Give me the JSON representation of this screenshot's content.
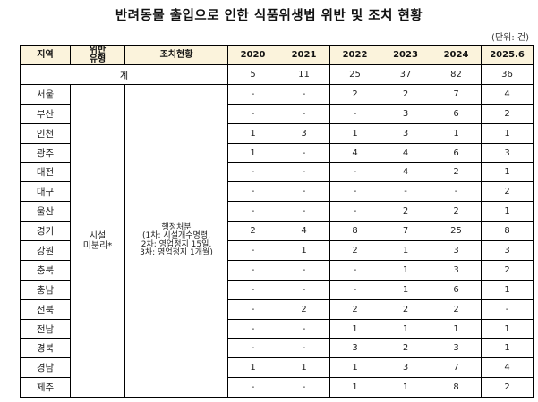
{
  "title": "반려동물 출입으로 인한 식품위생법 위반 및 조치 현황",
  "unit": "(단위: 건)",
  "headers": {
    "region": "지역",
    "violation_type": "위반\n유형",
    "action": "조치현황",
    "years": [
      "2020",
      "2021",
      "2022",
      "2023",
      "2024",
      "2025.6"
    ]
  },
  "total": {
    "label": "계",
    "values": [
      "5",
      "11",
      "25",
      "37",
      "82",
      "36"
    ]
  },
  "violation_type": "시설\n미분리*",
  "action": "행정처분\n(1차: 시설개수명령,\n2차: 영업정지 15일,\n3차: 영업정지 1개월)",
  "rows": [
    {
      "region": "서울",
      "values": [
        "-",
        "-",
        "2",
        "2",
        "7",
        "4"
      ]
    },
    {
      "region": "부산",
      "values": [
        "-",
        "-",
        "-",
        "3",
        "6",
        "2"
      ]
    },
    {
      "region": "인천",
      "values": [
        "1",
        "3",
        "1",
        "3",
        "1",
        "1"
      ]
    },
    {
      "region": "광주",
      "values": [
        "1",
        "-",
        "4",
        "4",
        "6",
        "3"
      ]
    },
    {
      "region": "대전",
      "values": [
        "-",
        "-",
        "-",
        "4",
        "2",
        "1"
      ]
    },
    {
      "region": "대구",
      "values": [
        "-",
        "-",
        "-",
        "-",
        "-",
        "2"
      ]
    },
    {
      "region": "울산",
      "values": [
        "-",
        "-",
        "-",
        "2",
        "2",
        "1"
      ]
    },
    {
      "region": "경기",
      "values": [
        "2",
        "4",
        "8",
        "7",
        "25",
        "8"
      ]
    },
    {
      "region": "강원",
      "values": [
        "-",
        "1",
        "2",
        "1",
        "3",
        "3"
      ]
    },
    {
      "region": "충북",
      "values": [
        "-",
        "-",
        "-",
        "1",
        "3",
        "2"
      ]
    },
    {
      "region": "충남",
      "values": [
        "-",
        "-",
        "-",
        "1",
        "6",
        "1"
      ]
    },
    {
      "region": "전북",
      "values": [
        "-",
        "2",
        "2",
        "2",
        "2",
        "-"
      ]
    },
    {
      "region": "전남",
      "values": [
        "-",
        "-",
        "1",
        "1",
        "1",
        "1"
      ]
    },
    {
      "region": "경북",
      "values": [
        "-",
        "-",
        "3",
        "2",
        "3",
        "1"
      ]
    },
    {
      "region": "경남",
      "values": [
        "1",
        "1",
        "1",
        "3",
        "7",
        "4"
      ]
    },
    {
      "region": "제주",
      "values": [
        "-",
        "-",
        "1",
        "1",
        "8",
        "2"
      ]
    }
  ],
  "colors": {
    "header_bg": "#fbf3dc",
    "border": "#000000"
  }
}
